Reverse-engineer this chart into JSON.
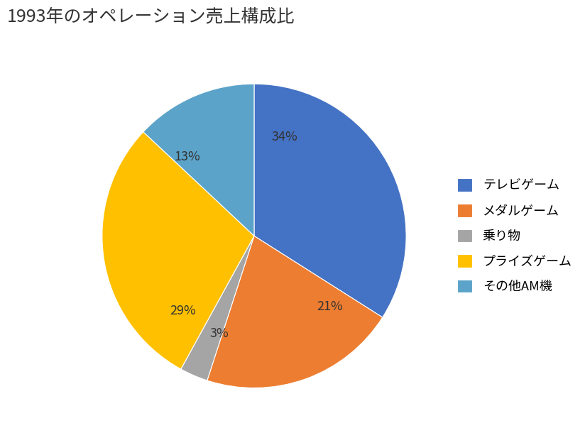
{
  "title": "1993年のオペレーション売上構成比",
  "labels": [
    "テレビゲーム",
    "メダルゲーム",
    "乗り物",
    "プライズゲーム",
    "その他AM機"
  ],
  "values": [
    34,
    21,
    3,
    29,
    13
  ],
  "colors": [
    "#4472C4",
    "#ED7D31",
    "#A5A5A5",
    "#FFC000",
    "#5BA3C9"
  ],
  "pct_labels": [
    "34%",
    "21%",
    "3%",
    "29%",
    "13%"
  ],
  "title_fontsize": 18,
  "legend_fontsize": 13,
  "pct_fontsize": 13,
  "background_color": "#FFFFFF",
  "start_angle": 90
}
